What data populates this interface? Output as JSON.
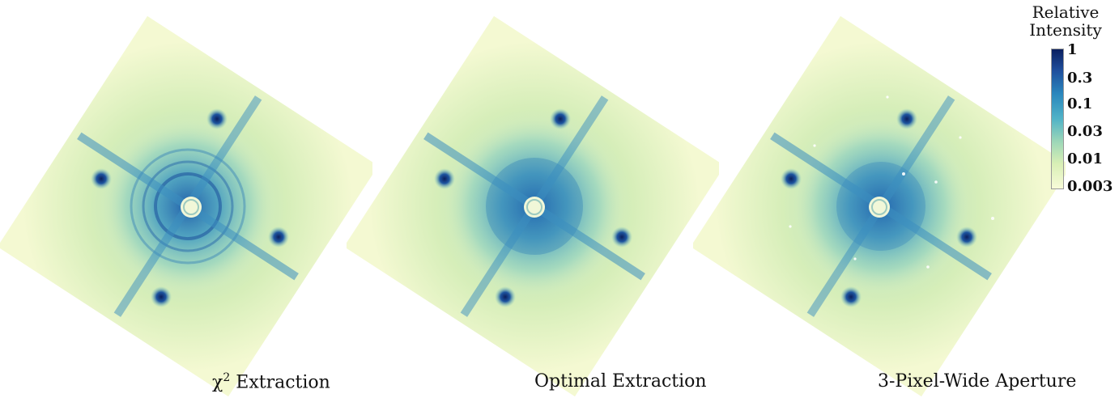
{
  "panels": [
    {
      "caption_prefix": "χ",
      "caption_sup": "2",
      "caption_text": " Extraction"
    },
    {
      "caption_text": "Optimal Extraction"
    },
    {
      "caption_text": "3-Pixel-Wide Aperture"
    }
  ],
  "colorbar": {
    "title_line1": "Relative",
    "title_line2": "Intensity",
    "ticks": [
      "1",
      "0.3",
      "0.1",
      "0.03",
      "0.01",
      "0.003"
    ],
    "colormap": "YlGnBu"
  }
}
